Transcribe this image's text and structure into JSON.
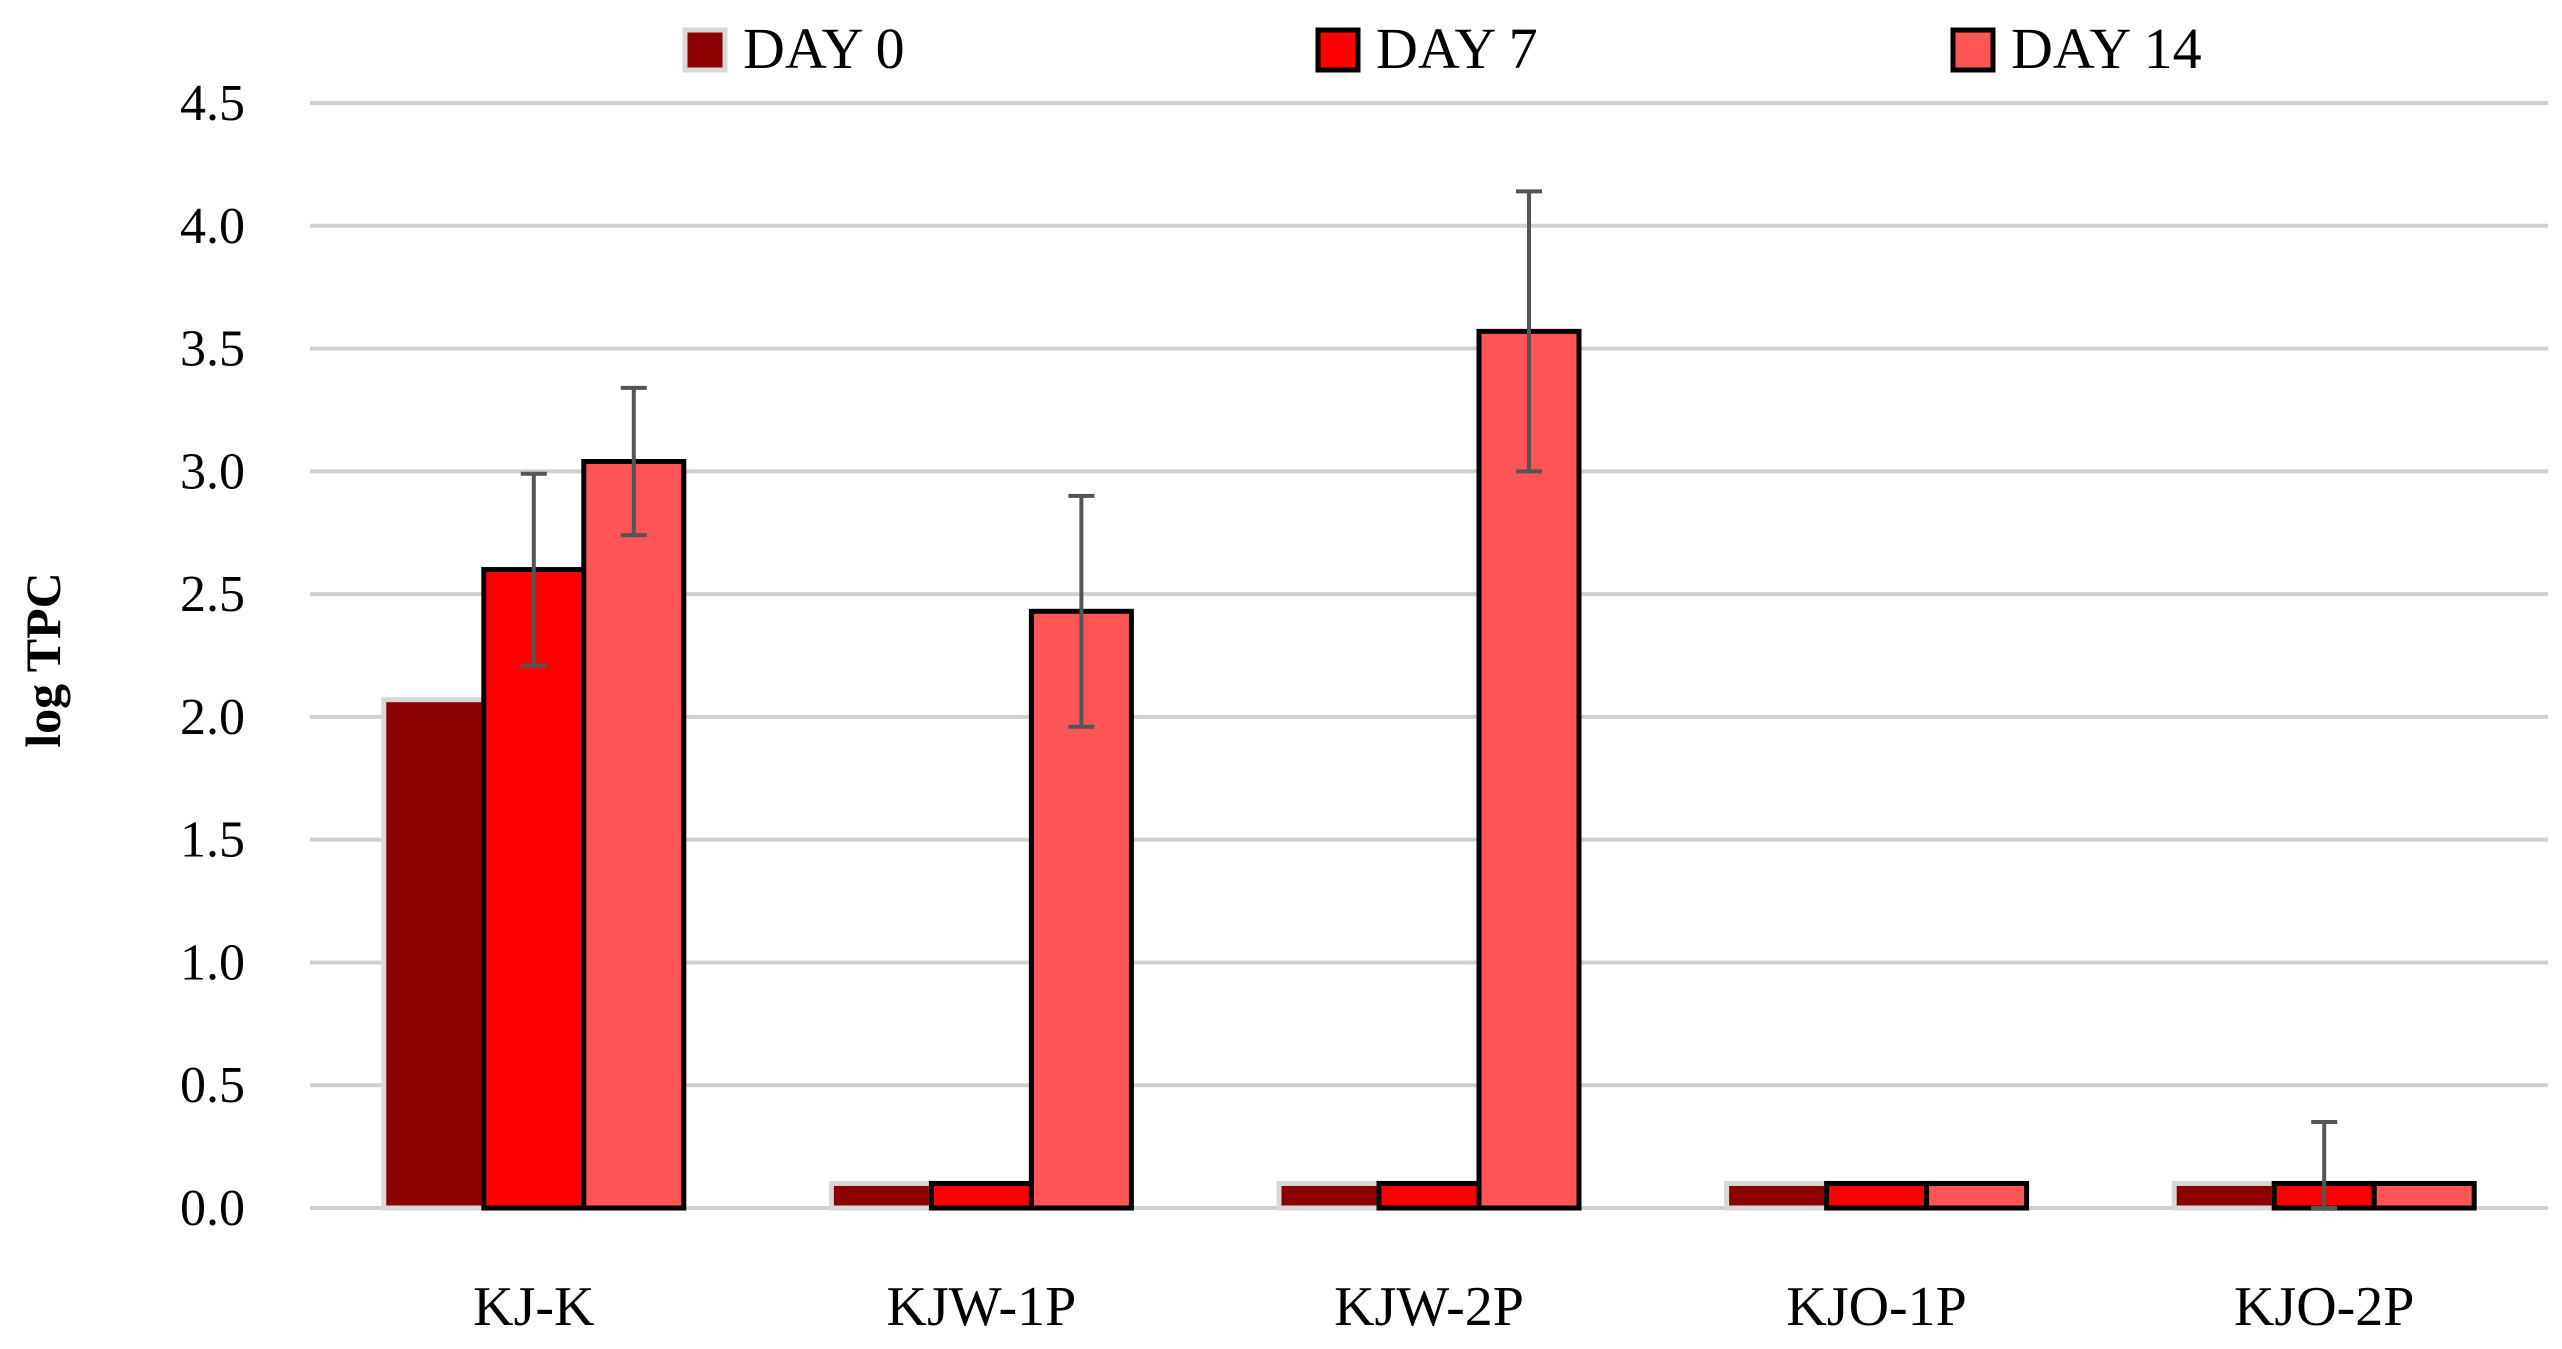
{
  "chart_data": {
    "type": "bar",
    "title": "",
    "xlabel": "",
    "ylabel": "log TPC",
    "ylim": [
      0,
      4.5
    ],
    "yticks": [
      "0.0",
      "0.5",
      "1.0",
      "1.5",
      "2.0",
      "2.5",
      "3.0",
      "3.5",
      "4.0",
      "4.5"
    ],
    "grid": true,
    "legend_position": "top",
    "categories": [
      "KJ-K",
      "KJW-1P",
      "KJW-2P",
      "KJO-1P",
      "KJO-2P"
    ],
    "series": [
      {
        "name": "DAY 0",
        "color": "#8B0000",
        "values": [
          2.07,
          0.1,
          0.1,
          0.1,
          0.1
        ],
        "errors": [
          0.0,
          0.0,
          0.0,
          0.0,
          0.0
        ]
      },
      {
        "name": "DAY 7",
        "color": "#FF0000",
        "values": [
          2.6,
          0.1,
          0.1,
          0.1,
          0.1
        ],
        "errors": [
          0.39,
          0.0,
          0.0,
          0.0,
          0.25
        ]
      },
      {
        "name": "DAY 14",
        "color": "#FF5555",
        "values": [
          3.04,
          2.43,
          3.57,
          0.1,
          0.1
        ],
        "errors": [
          0.3,
          0.47,
          0.57,
          0.0,
          0.0
        ]
      }
    ]
  }
}
